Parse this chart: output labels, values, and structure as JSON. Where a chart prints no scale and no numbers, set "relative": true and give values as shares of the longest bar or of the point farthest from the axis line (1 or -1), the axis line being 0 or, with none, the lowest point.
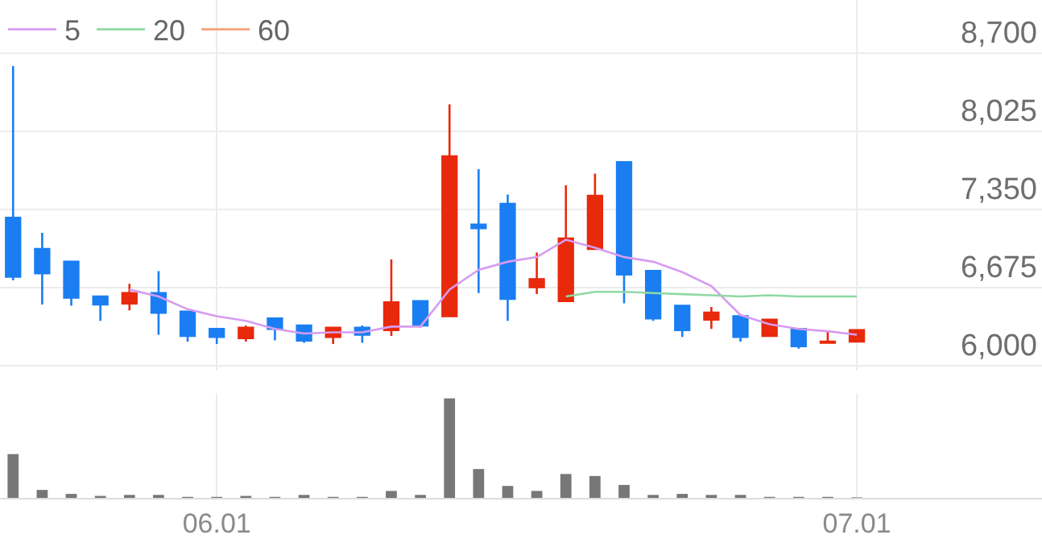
{
  "chart_data": [
    {
      "type": "candlestick",
      "categories": [
        null,
        null,
        null,
        null,
        null,
        null,
        null,
        "06.01",
        null,
        null,
        null,
        null,
        null,
        null,
        null,
        null,
        null,
        null,
        null,
        null,
        null,
        null,
        null,
        null,
        null,
        null,
        null,
        null,
        null,
        "07.01"
      ],
      "ohlc": [
        [
          7280,
          8590,
          6740,
          6770
        ],
        [
          7010,
          7150,
          6530,
          6800
        ],
        [
          6900,
          6900,
          6520,
          6590
        ],
        [
          6600,
          6600,
          6390,
          6530
        ],
        [
          6540,
          6710,
          6480,
          6630
        ],
        [
          6630,
          6820,
          6270,
          6460
        ],
        [
          6470,
          6470,
          6210,
          6260
        ],
        [
          6320,
          6320,
          6190,
          6250
        ],
        [
          6240,
          6350,
          6210,
          6330
        ],
        [
          6410,
          6410,
          6220,
          6320
        ],
        [
          6350,
          6350,
          6200,
          6220
        ],
        [
          6250,
          6330,
          6190,
          6330
        ],
        [
          6330,
          6350,
          6200,
          6270
        ],
        [
          6310,
          6920,
          6260,
          6550
        ],
        [
          6560,
          6560,
          6330,
          6350
        ],
        [
          6430,
          8260,
          6430,
          7810
        ],
        [
          7220,
          7700,
          6630,
          7190
        ],
        [
          7400,
          7480,
          6390,
          6580
        ],
        [
          6680,
          6980,
          6620,
          6750
        ],
        [
          6560,
          7560,
          6560,
          7100
        ],
        [
          7010,
          7660,
          7010,
          7470
        ],
        [
          7760,
          7760,
          6540,
          6790
        ],
        [
          6820,
          6820,
          6390,
          6410
        ],
        [
          6520,
          6520,
          6250,
          6310
        ],
        [
          6400,
          6510,
          6320,
          6460
        ],
        [
          6430,
          6430,
          6210,
          6250
        ],
        [
          6260,
          6400,
          6250,
          6400
        ],
        [
          6320,
          6320,
          6150,
          6170
        ],
        [
          6200,
          6300,
          6200,
          6210
        ],
        [
          6210,
          6310,
          6210,
          6310
        ]
      ],
      "colors": [
        "#1a7ef2",
        "#1a7ef2",
        "#1a7ef2",
        "#1a7ef2",
        "#e8290b",
        "#1a7ef2",
        "#1a7ef2",
        "#1a7ef2",
        "#e8290b",
        "#1a7ef2",
        "#1a7ef2",
        "#e8290b",
        "#1a7ef2",
        "#e8290b",
        "#1a7ef2",
        "#e8290b",
        "#1a7ef2",
        "#1a7ef2",
        "#e8290b",
        "#e8290b",
        "#e8290b",
        "#1a7ef2",
        "#1a7ef2",
        "#1a7ef2",
        "#e8290b",
        "#1a7ef2",
        "#e8290b",
        "#1a7ef2",
        "#e8290b",
        "#e8290b"
      ],
      "series": [
        {
          "name": "5",
          "type": "line",
          "color": "#d79cf0",
          "values": [
            null,
            null,
            null,
            null,
            6660,
            6600,
            6490,
            6430,
            6390,
            6320,
            6280,
            6290,
            6290,
            6340,
            6340,
            6660,
            6830,
            6900,
            6940,
            7090,
            7020,
            6940,
            6900,
            6810,
            6690,
            6440,
            6360,
            6320,
            6300,
            6270
          ]
        },
        {
          "name": "20",
          "type": "line",
          "color": "#8fd9a3",
          "values": [
            null,
            null,
            null,
            null,
            null,
            null,
            null,
            null,
            null,
            null,
            null,
            null,
            null,
            null,
            null,
            null,
            null,
            null,
            null,
            6600,
            6640,
            6640,
            6630,
            6620,
            6610,
            6600,
            6610,
            6600,
            6600,
            6600
          ]
        },
        {
          "name": "60",
          "type": "line",
          "color": "#f5a27c",
          "values": [
            null,
            null,
            null,
            null,
            null,
            null,
            null,
            null,
            null,
            null,
            null,
            null,
            null,
            null,
            null,
            null,
            null,
            null,
            null,
            null,
            null,
            null,
            null,
            null,
            null,
            null,
            null,
            null,
            null,
            null
          ]
        }
      ],
      "ylim": [
        5960,
        9160
      ],
      "yticks": [
        {
          "value": 6000,
          "label": "6,000"
        },
        {
          "value": 6675,
          "label": "6,675"
        },
        {
          "value": 7350,
          "label": "7,350"
        },
        {
          "value": 8025,
          "label": "8,025"
        },
        {
          "value": 8700,
          "label": "8,700"
        }
      ],
      "grid": true,
      "legend": "top left",
      "tick_labels": "y"
    },
    {
      "type": "bar",
      "relative": true,
      "categories": [
        null,
        null,
        null,
        null,
        null,
        null,
        null,
        "06.01",
        null,
        null,
        null,
        null,
        null,
        null,
        null,
        null,
        null,
        null,
        null,
        null,
        null,
        null,
        null,
        null,
        null,
        null,
        null,
        null,
        null,
        "07.01"
      ],
      "values": [
        0.44,
        0.08,
        0.04,
        0.02,
        0.03,
        0.03,
        0.01,
        0.01,
        0.02,
        0.01,
        0.03,
        0.01,
        0.01,
        0.07,
        0.03,
        1,
        0.29,
        0.12,
        0.07,
        0.24,
        0.22,
        0.13,
        0.03,
        0.04,
        0.03,
        0.03,
        0.01,
        0.01,
        0.01,
        0.005
      ],
      "color": "#777777",
      "grid": "x",
      "tick_labels": "x"
    }
  ]
}
